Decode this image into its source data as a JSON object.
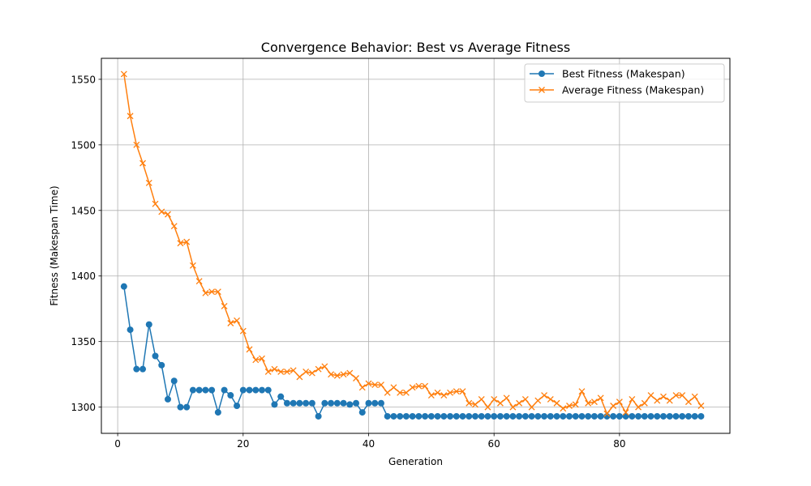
{
  "chart_data": {
    "type": "line",
    "title": "Convergence Behavior: Best vs Average Fitness",
    "xlabel": "Generation",
    "ylabel": "Fitness (Makespan Time)",
    "xlim": [
      -2.6,
      97.6
    ],
    "ylim": [
      1280,
      1566
    ],
    "xticks": [
      0,
      20,
      40,
      60,
      80
    ],
    "yticks": [
      1300,
      1350,
      1400,
      1450,
      1500,
      1550
    ],
    "grid": true,
    "legend_position": "top-right",
    "x": [
      1,
      2,
      3,
      4,
      5,
      6,
      7,
      8,
      9,
      10,
      11,
      12,
      13,
      14,
      15,
      16,
      17,
      18,
      19,
      20,
      21,
      22,
      23,
      24,
      25,
      26,
      27,
      28,
      29,
      30,
      31,
      32,
      33,
      34,
      35,
      36,
      37,
      38,
      39,
      40,
      41,
      42,
      43,
      44,
      45,
      46,
      47,
      48,
      49,
      50,
      51,
      52,
      53,
      54,
      55,
      56,
      57,
      58,
      59,
      60,
      61,
      62,
      63,
      64,
      65,
      66,
      67,
      68,
      69,
      70,
      71,
      72,
      73,
      74,
      75,
      76,
      77,
      78,
      79,
      80,
      81,
      82,
      83,
      84,
      85,
      86,
      87,
      88,
      89,
      90,
      91,
      92,
      93
    ],
    "series": [
      {
        "name": "Best Fitness (Makespan)",
        "color": "#1f77b4",
        "marker": "circle",
        "values": [
          1392,
          1359,
          1329,
          1329,
          1363,
          1339,
          1332,
          1306,
          1320,
          1300,
          1300,
          1313,
          1313,
          1313,
          1313,
          1296,
          1313,
          1309,
          1301,
          1313,
          1313,
          1313,
          1313,
          1313,
          1302,
          1308,
          1303,
          1303,
          1303,
          1303,
          1303,
          1293,
          1303,
          1303,
          1303,
          1303,
          1302,
          1303,
          1296,
          1303,
          1303,
          1303,
          1293,
          1293,
          1293,
          1293,
          1293,
          1293,
          1293,
          1293,
          1293,
          1293,
          1293,
          1293,
          1293,
          1293,
          1293,
          1293,
          1293,
          1293,
          1293,
          1293,
          1293,
          1293,
          1293,
          1293,
          1293,
          1293,
          1293,
          1293,
          1293,
          1293,
          1293,
          1293,
          1293,
          1293,
          1293,
          1293,
          1293,
          1293,
          1293,
          1293,
          1293,
          1293,
          1293,
          1293,
          1293,
          1293,
          1293,
          1293,
          1293,
          1293,
          1293
        ]
      },
      {
        "name": "Average Fitness (Makespan)",
        "color": "#ff7f0e",
        "marker": "x",
        "values": [
          1554,
          1522,
          1500,
          1486,
          1471,
          1455,
          1449,
          1447,
          1438,
          1425,
          1426,
          1408,
          1396,
          1387,
          1388,
          1388,
          1377,
          1364,
          1366,
          1358,
          1344,
          1336,
          1337,
          1327,
          1329,
          1327,
          1327,
          1328,
          1323,
          1327,
          1326,
          1329,
          1331,
          1325,
          1324,
          1325,
          1326,
          1322,
          1315,
          1318,
          1317,
          1317,
          1311,
          1315,
          1311,
          1311,
          1315,
          1316,
          1316,
          1309,
          1311,
          1309,
          1311,
          1312,
          1312,
          1303,
          1302,
          1306,
          1300,
          1306,
          1303,
          1307,
          1300,
          1303,
          1306,
          1300,
          1305,
          1309,
          1306,
          1303,
          1299,
          1301,
          1302,
          1312,
          1303,
          1304,
          1307,
          1295,
          1301,
          1304,
          1296,
          1306,
          1300,
          1303,
          1309,
          1305,
          1308,
          1305,
          1309,
          1309,
          1304,
          1308,
          1301
        ]
      }
    ]
  }
}
